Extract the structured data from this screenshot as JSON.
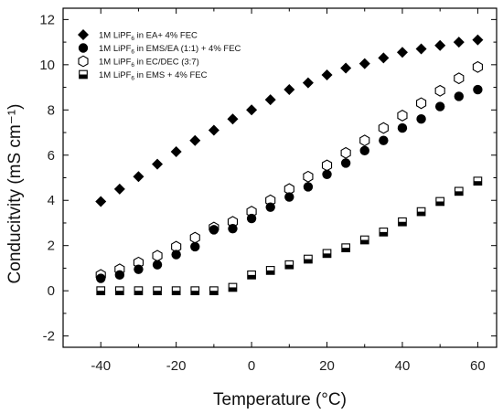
{
  "chart_data": {
    "type": "scatter",
    "xlabel": "Temperature  (°C)",
    "ylabel": "Conducitvity (mS cm⁻¹)",
    "xlim": [
      -50,
      65
    ],
    "ylim": [
      -2.5,
      12.5
    ],
    "xticks": [
      -40,
      -20,
      0,
      20,
      40,
      60
    ],
    "yticks": [
      -2,
      0,
      2,
      4,
      6,
      8,
      10,
      12
    ],
    "grid": false,
    "legend_position": "top-left",
    "series": [
      {
        "legend": {
          "pre": "1M LiPF",
          "sub": "6",
          "post": " in EA+ 4% FEC"
        },
        "marker": "diamond-filled",
        "x": [
          -40,
          -35,
          -30,
          -25,
          -20,
          -15,
          -10,
          -5,
          0,
          5,
          10,
          15,
          20,
          25,
          30,
          35,
          40,
          45,
          50,
          55,
          60
        ],
        "y": [
          3.95,
          4.5,
          5.05,
          5.6,
          6.15,
          6.65,
          7.1,
          7.6,
          8.0,
          8.45,
          8.9,
          9.2,
          9.55,
          9.85,
          10.05,
          10.3,
          10.55,
          10.7,
          10.85,
          11.0,
          11.1
        ]
      },
      {
        "legend": {
          "pre": "1M LiPF",
          "sub": "6",
          "post": " in EMS/EA (1:1) + 4% FEC"
        },
        "marker": "circle-filled",
        "x": [
          -40,
          -35,
          -30,
          -25,
          -20,
          -15,
          -10,
          -5,
          0,
          5,
          10,
          15,
          20,
          25,
          30,
          35,
          40,
          45,
          50,
          55,
          60
        ],
        "y": [
          0.55,
          0.7,
          0.95,
          1.15,
          1.6,
          1.95,
          2.7,
          2.75,
          3.2,
          3.7,
          4.15,
          4.6,
          5.15,
          5.65,
          6.2,
          6.65,
          7.2,
          7.6,
          8.15,
          8.6,
          8.9
        ]
      },
      {
        "legend": {
          "pre": "1M LiPF",
          "sub": "6",
          "post": " in EC/DEC (3:7)"
        },
        "marker": "hexagon-open",
        "x": [
          -40,
          -35,
          -30,
          -25,
          -20,
          -15,
          -10,
          -5,
          0,
          5,
          10,
          15,
          20,
          25,
          30,
          35,
          40,
          45,
          50,
          55,
          60
        ],
        "y": [
          0.7,
          0.95,
          1.25,
          1.55,
          1.95,
          2.35,
          2.8,
          3.05,
          3.5,
          4.0,
          4.5,
          5.05,
          5.55,
          6.1,
          6.65,
          7.2,
          7.75,
          8.3,
          8.85,
          9.4,
          9.9
        ]
      },
      {
        "legend": {
          "pre": "1M LiPF",
          "sub": "6",
          "post": "  in EMS + 4% FEC"
        },
        "marker": "square-half",
        "x": [
          -40,
          -35,
          -30,
          -25,
          -20,
          -15,
          -10,
          -5,
          0,
          5,
          10,
          15,
          20,
          25,
          30,
          35,
          40,
          45,
          50,
          55,
          60
        ],
        "y": [
          0.0,
          0.0,
          0.0,
          0.0,
          0.0,
          0.0,
          0.0,
          0.15,
          0.7,
          0.9,
          1.15,
          1.4,
          1.65,
          1.9,
          2.25,
          2.6,
          3.05,
          3.5,
          3.95,
          4.4,
          4.85
        ]
      }
    ]
  }
}
